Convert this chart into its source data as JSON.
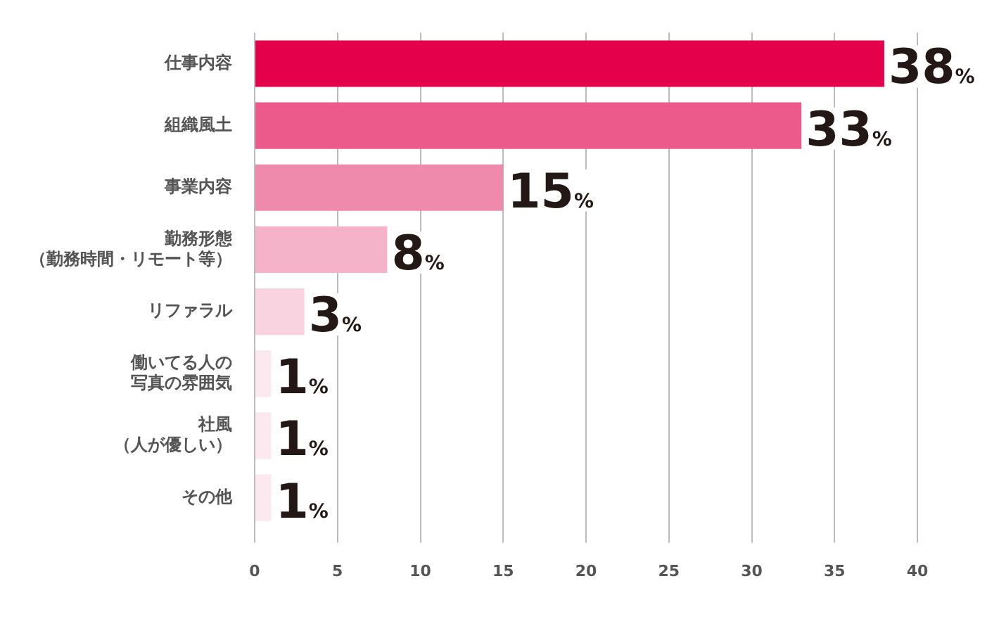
{
  "chart_data": {
    "type": "bar",
    "orientation": "horizontal",
    "categories": [
      "仕事内容",
      "組織風土",
      "事業内容",
      "勤務形態（勤務時間・リモート等）",
      "リファラル",
      "働いてる人の写真の雰囲気",
      "社風（人が優しい）",
      "その他"
    ],
    "values": [
      38,
      33,
      15,
      8,
      3,
      1,
      1,
      1
    ],
    "colors": [
      "#e4004b",
      "#eb5a8a",
      "#f08aad",
      "#f5b3ca",
      "#f9d3e0",
      "#fce8ef",
      "#fce8ef",
      "#fce8ef"
    ],
    "value_labels": [
      "38%",
      "33%",
      "15%",
      "8%",
      "3%",
      "1%",
      "1%",
      "1%"
    ],
    "xlim": [
      0,
      40
    ],
    "xticks": [
      0,
      5,
      10,
      15,
      20,
      25,
      30,
      35,
      40
    ],
    "grid": "x",
    "legend": false
  }
}
